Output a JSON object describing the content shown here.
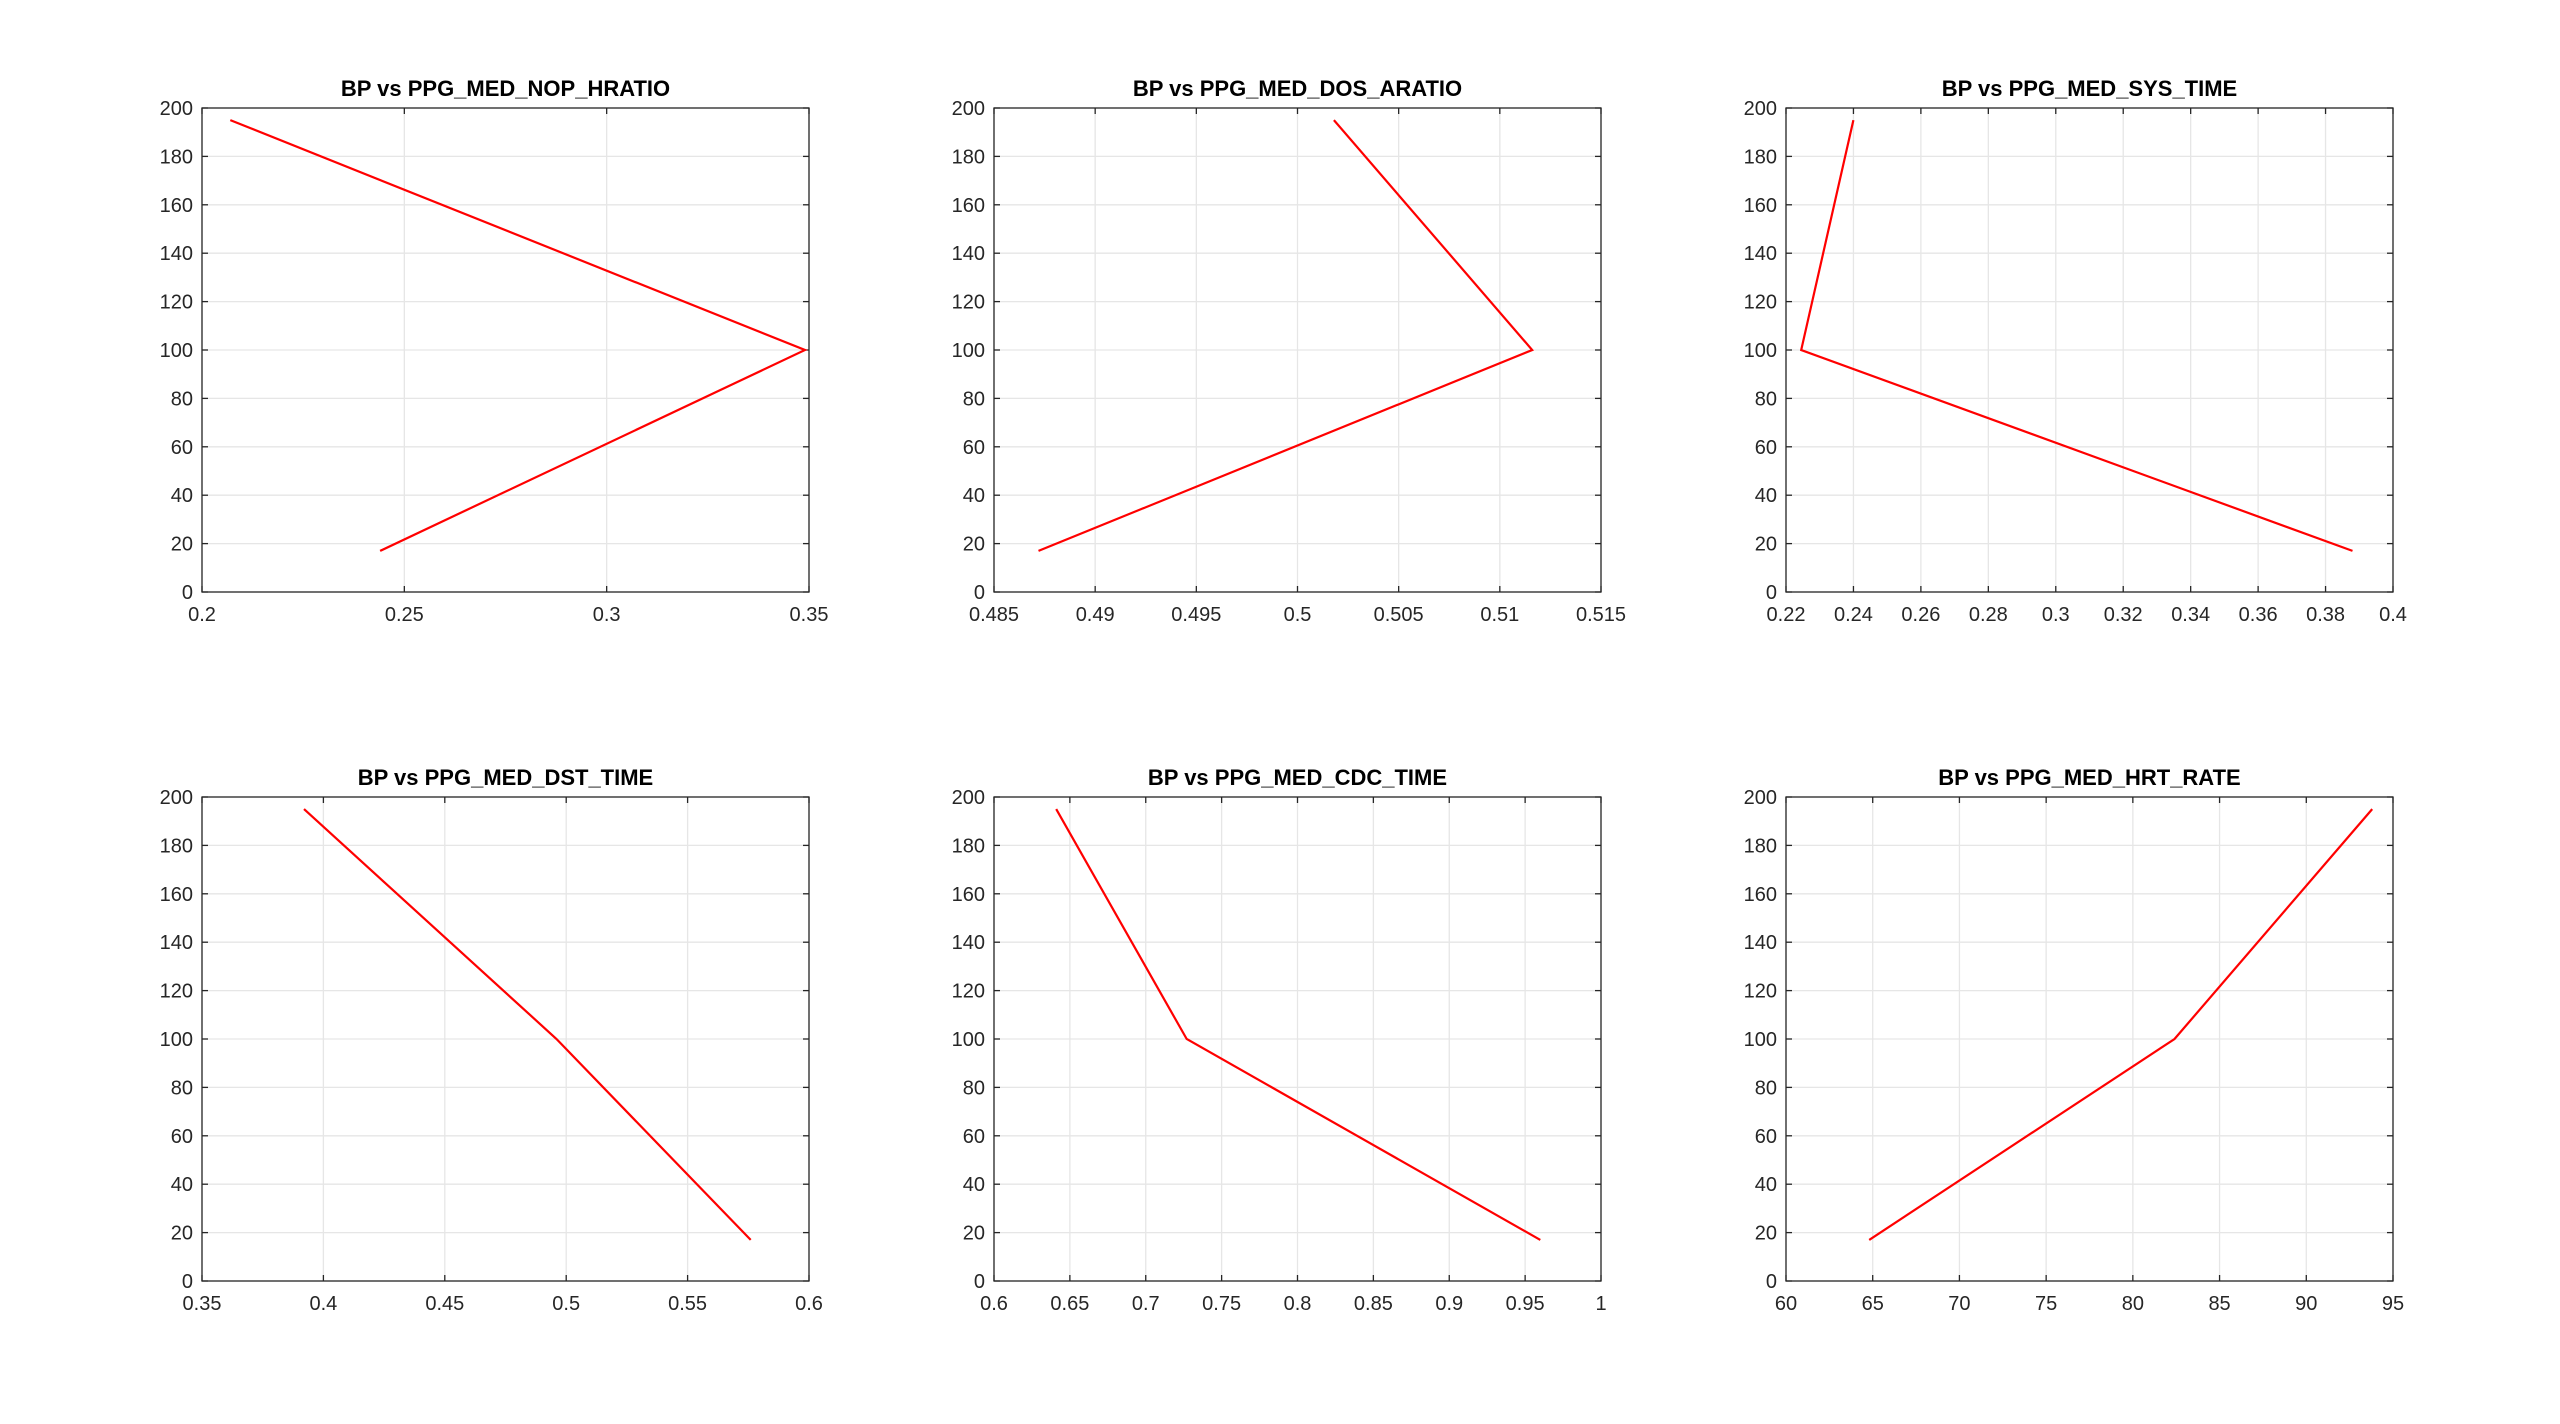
{
  "figure": {
    "background": "#ffffff",
    "line_color": "#ff0000",
    "grid_color": "#e6e6e6",
    "axis_color": "#262626"
  },
  "chart_data": [
    {
      "type": "line",
      "title": "BP vs PPG_MED_NOP_HRATIO",
      "xlabel": "",
      "ylabel": "",
      "xlim": [
        0.2,
        0.35
      ],
      "ylim": [
        0,
        200
      ],
      "xticks": [
        "0.2",
        "0.25",
        "0.3",
        "0.35"
      ],
      "yticks": [
        "0",
        "20",
        "40",
        "60",
        "80",
        "100",
        "120",
        "140",
        "160",
        "180",
        "200"
      ],
      "grid": true,
      "series": [
        {
          "x": [
            0.207,
            0.349,
            0.244
          ],
          "y": [
            195,
            100,
            17
          ]
        }
      ]
    },
    {
      "type": "line",
      "title": "BP vs PPG_MED_DOS_ARATIO",
      "xlabel": "",
      "ylabel": "",
      "xlim": [
        0.485,
        0.515
      ],
      "ylim": [
        0,
        200
      ],
      "xticks": [
        "0.485",
        "0.49",
        "0.495",
        "0.5",
        "0.505",
        "0.51",
        "0.515"
      ],
      "yticks": [
        "0",
        "20",
        "40",
        "60",
        "80",
        "100",
        "120",
        "140",
        "160",
        "180",
        "200"
      ],
      "grid": true,
      "series": [
        {
          "x": [
            0.5018,
            0.5116,
            0.4872
          ],
          "y": [
            195,
            100,
            17
          ]
        }
      ]
    },
    {
      "type": "line",
      "title": "BP vs PPG_MED_SYS_TIME",
      "xlabel": "",
      "ylabel": "",
      "xlim": [
        0.22,
        0.4
      ],
      "ylim": [
        0,
        200
      ],
      "xticks": [
        "0.22",
        "0.24",
        "0.26",
        "0.28",
        "0.3",
        "0.32",
        "0.34",
        "0.36",
        "0.38",
        "0.4"
      ],
      "yticks": [
        "0",
        "20",
        "40",
        "60",
        "80",
        "100",
        "120",
        "140",
        "160",
        "180",
        "200"
      ],
      "grid": true,
      "series": [
        {
          "x": [
            0.24,
            0.2245,
            0.388
          ],
          "y": [
            195,
            100,
            17
          ]
        }
      ]
    },
    {
      "type": "line",
      "title": "BP vs PPG_MED_DST_TIME",
      "xlabel": "",
      "ylabel": "",
      "xlim": [
        0.35,
        0.6
      ],
      "ylim": [
        0,
        200
      ],
      "xticks": [
        "0.35",
        "0.4",
        "0.45",
        "0.5",
        "0.55",
        "0.6"
      ],
      "yticks": [
        "0",
        "20",
        "40",
        "60",
        "80",
        "100",
        "120",
        "140",
        "160",
        "180",
        "200"
      ],
      "grid": true,
      "series": [
        {
          "x": [
            0.392,
            0.496,
            0.576
          ],
          "y": [
            195,
            100,
            17
          ]
        }
      ]
    },
    {
      "type": "line",
      "title": "BP vs PPG_MED_CDC_TIME",
      "xlabel": "",
      "ylabel": "",
      "xlim": [
        0.6,
        1
      ],
      "ylim": [
        0,
        200
      ],
      "xticks": [
        "0.6",
        "0.65",
        "0.7",
        "0.75",
        "0.8",
        "0.85",
        "0.9",
        "0.95",
        "1"
      ],
      "yticks": [
        "0",
        "20",
        "40",
        "60",
        "80",
        "100",
        "120",
        "140",
        "160",
        "180",
        "200"
      ],
      "grid": true,
      "series": [
        {
          "x": [
            0.641,
            0.727,
            0.96
          ],
          "y": [
            195,
            100,
            17
          ]
        }
      ]
    },
    {
      "type": "line",
      "title": "BP vs PPG_MED_HRT_RATE",
      "xlabel": "",
      "ylabel": "",
      "xlim": [
        60,
        95
      ],
      "ylim": [
        0,
        200
      ],
      "xticks": [
        "60",
        "65",
        "70",
        "75",
        "80",
        "85",
        "90",
        "95"
      ],
      "yticks": [
        "0",
        "20",
        "40",
        "60",
        "80",
        "100",
        "120",
        "140",
        "160",
        "180",
        "200"
      ],
      "grid": true,
      "series": [
        {
          "x": [
            64.8,
            82.4,
            93.8
          ],
          "y": [
            17,
            100,
            195
          ]
        }
      ]
    }
  ]
}
